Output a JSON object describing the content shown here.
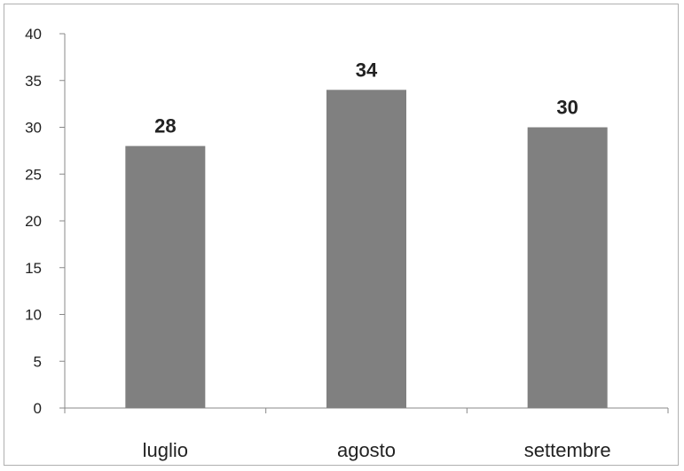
{
  "chart_data": {
    "type": "bar",
    "categories": [
      "luglio",
      "agosto",
      "settembre"
    ],
    "values": [
      28,
      34,
      30
    ],
    "data_labels": [
      "28",
      "34",
      "30"
    ],
    "title": "",
    "xlabel": "",
    "ylabel": "",
    "ylim": [
      0,
      40
    ],
    "yticks": [
      "0",
      "5",
      "10",
      "15",
      "20",
      "25",
      "30",
      "35",
      "40"
    ],
    "grid": false,
    "legend": "none",
    "bar_color": "#808080"
  }
}
